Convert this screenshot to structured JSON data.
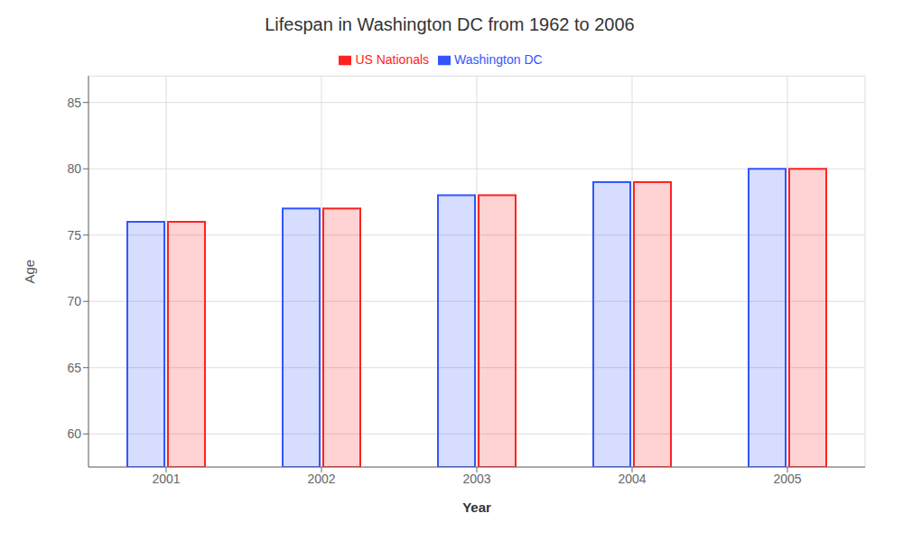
{
  "chart_data": {
    "type": "bar",
    "title": "Lifespan in Washington DC from 1962 to 2006",
    "xlabel": "Year",
    "ylabel": "Age",
    "categories": [
      "2001",
      "2002",
      "2003",
      "2004",
      "2005"
    ],
    "series": [
      {
        "name": "Washington DC",
        "color": "#3355ff",
        "values": [
          76,
          77,
          78,
          79,
          80
        ]
      },
      {
        "name": "US Nationals",
        "color": "#ff2222",
        "values": [
          76,
          77,
          78,
          79,
          80
        ]
      }
    ],
    "ylim": [
      57.5,
      87
    ],
    "yticks": [
      60,
      65,
      70,
      75,
      80,
      85
    ],
    "grid": true,
    "legend": "top"
  }
}
